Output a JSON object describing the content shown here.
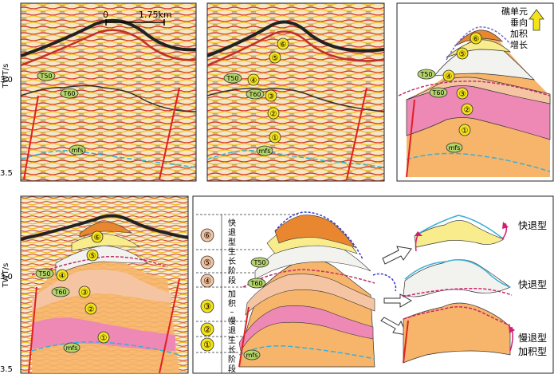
{
  "axes": {
    "twt_label": "TWT/s",
    "tick_30": "3.0",
    "tick_35": "3.5"
  },
  "scale_bar": {
    "start": "0",
    "end": "1.75km"
  },
  "horizons": {
    "t50": "T50",
    "t60": "T60",
    "mfs": "mfs"
  },
  "units": {
    "u1": "①",
    "u2": "②",
    "u3": "③",
    "u4": "④",
    "u5": "⑤",
    "u6": "⑥"
  },
  "growth_arrow_label": [
    "礁单元",
    "垂向",
    "加积",
    "增长"
  ],
  "stage_labels": {
    "fast": [
      "快",
      "退",
      "型",
      "生",
      "长",
      "阶",
      "段"
    ],
    "slow": [
      "加",
      "积",
      "–",
      "慢",
      "退",
      "生",
      "长",
      "阶",
      "段"
    ]
  },
  "type_labels": {
    "fast_retreat_1": "快退型",
    "fast_retreat_2": "快退型",
    "slow_retreat": "慢退型",
    "aggradation": "加积型"
  },
  "colors": {
    "u1": "#f6b56a",
    "u2": "#ee88b4",
    "u3": "#f5c5a3",
    "u4": "#f2f2ee",
    "u5": "#f8ec8d",
    "u6": "#e8872f",
    "fault": "#e02020",
    "seismic_red": "#d83a2a",
    "seismic_yellow": "#f2c830",
    "unit_badge": "#f5e31a",
    "t50_badge": "#b5d46a"
  }
}
